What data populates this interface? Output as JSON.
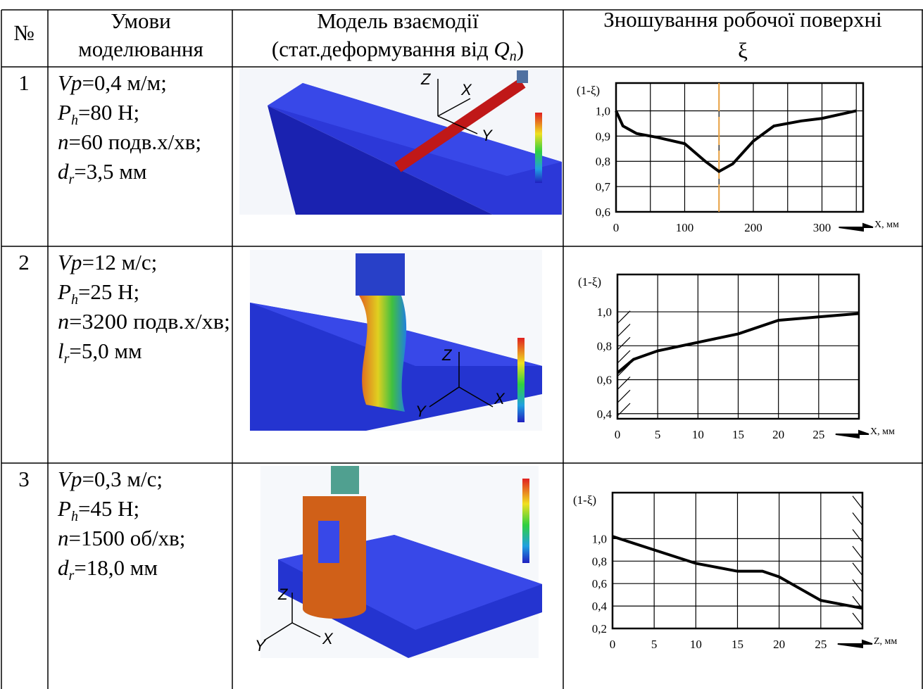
{
  "header": {
    "num": "№",
    "conditions": [
      "Умови",
      "моделювання"
    ],
    "model": {
      "line1": "Модель взаємодії",
      "pre": "(стат.деформування від ",
      "var": "Q",
      "sub": "n",
      "post": ")"
    },
    "wear": [
      "Зношування робочої поверхні",
      "ξ"
    ]
  },
  "rows": [
    {
      "number": "1",
      "conditions": [
        {
          "var": "Vp",
          "rest": "=0,4 м/м;"
        },
        {
          "var": "P",
          "sub": "h",
          "rest": "=80 Н;"
        },
        {
          "var": "n",
          "rest": "=60 подв.х/хв;"
        },
        {
          "var": "d",
          "sub": "r",
          "rest": "=3,5 мм"
        }
      ],
      "model_axes": [
        "Z",
        "X",
        "Y"
      ],
      "chart": {
        "type": "line",
        "y_label": "(1-ξ)",
        "x_label": "X, мм",
        "x": [
          0,
          10,
          30,
          60,
          100,
          130,
          150,
          170,
          200,
          230,
          270,
          300,
          350
        ],
        "series": [
          {
            "color": "#000000",
            "values": [
              1.0,
              0.94,
              0.91,
              0.895,
              0.87,
              0.8,
              0.76,
              0.79,
              0.88,
              0.94,
              0.96,
              0.97,
              1.0
            ]
          }
        ],
        "xlim": [
          0,
          360
        ],
        "ylim": [
          0.6,
          1.11
        ],
        "xticks": [
          0,
          100,
          200,
          300
        ],
        "xgrid": [
          50,
          100,
          150,
          200,
          250,
          300,
          350
        ],
        "yticks": [
          {
            "value": 0.6,
            "label": "0,6"
          },
          {
            "value": 0.7,
            "label": "0,7"
          },
          {
            "value": 0.8,
            "label": "0,8"
          },
          {
            "value": 0.9,
            "label": "0,9"
          },
          {
            "value": 1.0,
            "label": "1,0"
          }
        ],
        "marker_x": 150,
        "marker_color": "#e8a040"
      }
    },
    {
      "number": "2",
      "conditions": [
        {
          "var": "Vp",
          "rest": "=12 м/с;"
        },
        {
          "var": "P",
          "sub": "h",
          "rest": "=25 Н;"
        },
        {
          "var": "n",
          "rest": "=3200 подв.х/хв;"
        },
        {
          "var": "l",
          "sub": "r",
          "rest": "=5,0 мм"
        }
      ],
      "model_axes": [
        "Z",
        "Y",
        "X"
      ],
      "chart": {
        "type": "line",
        "y_label": "(1-ξ)",
        "x_label": "X, мм",
        "x": [
          0,
          2,
          5,
          10,
          15,
          20,
          25,
          30
        ],
        "series": [
          {
            "color": "#000000",
            "values": [
              0.64,
              0.72,
              0.77,
              0.82,
              0.87,
              0.95,
              0.97,
              0.99
            ]
          }
        ],
        "xlim": [
          0,
          30
        ],
        "ylim": [
          0.37,
          1.22
        ],
        "xticks": [
          0,
          5,
          10,
          15,
          20,
          25
        ],
        "xgrid": [
          5,
          10,
          15,
          20,
          25,
          30
        ],
        "yticks": [
          {
            "value": 0.4,
            "label": "0,4"
          },
          {
            "value": 0.6,
            "label": "0,6"
          },
          {
            "value": 0.8,
            "label": "0,8"
          },
          {
            "value": 1.0,
            "label": "1,0"
          }
        ]
      }
    },
    {
      "number": "3",
      "conditions": [
        {
          "var": "Vp",
          "rest": "=0,3 м/с;"
        },
        {
          "var": "P",
          "sub": "h",
          "rest": "=45 Н;"
        },
        {
          "var": "n",
          "rest": "=1500 об/хв;"
        },
        {
          "var": "d",
          "sub": "r",
          "rest": "=18,0 мм"
        }
      ],
      "model_axes": [
        "Z",
        "Y",
        "X"
      ],
      "chart": {
        "type": "line",
        "y_label": "(1-ξ)",
        "x_label": "Z, мм",
        "x": [
          0,
          5,
          10,
          15,
          18,
          20,
          25,
          30
        ],
        "series": [
          {
            "color": "#000000",
            "values": [
              1.02,
              0.9,
              0.78,
              0.71,
              0.71,
              0.66,
              0.45,
              0.38
            ]
          }
        ],
        "xlim": [
          0,
          30
        ],
        "ylim": [
          0.2,
          1.41
        ],
        "xticks": [
          0,
          5,
          10,
          15,
          20,
          25
        ],
        "xgrid": [
          5,
          10,
          15,
          20,
          25,
          30
        ],
        "yticks": [
          {
            "value": 0.2,
            "label": "0,2"
          },
          {
            "value": 0.4,
            "label": "0,4"
          },
          {
            "value": 0.6,
            "label": "0,6"
          },
          {
            "value": 0.8,
            "label": "0,8"
          },
          {
            "value": 1.0,
            "label": "1,0"
          }
        ]
      }
    }
  ]
}
